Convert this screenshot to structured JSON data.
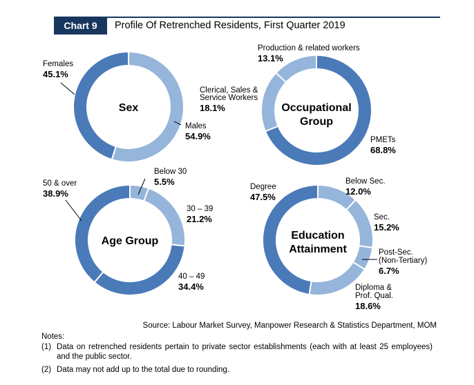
{
  "header": {
    "badge": "Chart 9",
    "title": "Profile Of Retrenched Residents, First Quarter 2019"
  },
  "colors": {
    "dark": "#4a7ab8",
    "light": "#95b5db",
    "ink": "#17375e"
  },
  "chart_data": [
    {
      "type": "pie",
      "variant": "donut",
      "title": "Sex",
      "start_angle_deg": 0,
      "slices": [
        {
          "label": "Males",
          "value": 54.9,
          "pct": "54.9%",
          "color": "#95b5db"
        },
        {
          "label": "Females",
          "value": 45.1,
          "pct": "45.1%",
          "color": "#4a7ab8"
        }
      ]
    },
    {
      "type": "pie",
      "variant": "donut",
      "title": "Occupational Group",
      "title_lines": [
        "Occupational",
        "Group"
      ],
      "start_angle_deg": 0,
      "slices": [
        {
          "label": "PMETs",
          "value": 68.8,
          "pct": "68.8%",
          "color": "#4a7ab8"
        },
        {
          "label": "Clerical, Sales & Service Workers",
          "label_lines": [
            "Clerical, Sales &",
            "Service Workers"
          ],
          "value": 18.1,
          "pct": "18.1%",
          "color": "#95b5db"
        },
        {
          "label": "Production & related workers",
          "value": 13.1,
          "pct": "13.1%",
          "color": "#95b5db"
        }
      ]
    },
    {
      "type": "pie",
      "variant": "donut",
      "title": "Age Group",
      "start_angle_deg": 0,
      "slices": [
        {
          "label": "Below 30",
          "value": 5.5,
          "pct": "5.5%",
          "color": "#95b5db"
        },
        {
          "label": "30 – 39",
          "value": 21.2,
          "pct": "21.2%",
          "color": "#95b5db"
        },
        {
          "label": "40 – 49",
          "value": 34.4,
          "pct": "34.4%",
          "color": "#4a7ab8"
        },
        {
          "label": "50 & over",
          "value": 38.9,
          "pct": "38.9%",
          "color": "#4a7ab8"
        }
      ]
    },
    {
      "type": "pie",
      "variant": "donut",
      "title": "Education Attainment",
      "title_lines": [
        "Education",
        "Attainment"
      ],
      "start_angle_deg": 0,
      "slices": [
        {
          "label": "Below Sec.",
          "value": 12.0,
          "pct": "12.0%",
          "color": "#95b5db"
        },
        {
          "label": "Sec.",
          "value": 15.2,
          "pct": "15.2%",
          "color": "#95b5db"
        },
        {
          "label": "Post-Sec. (Non-Tertiary)",
          "label_lines": [
            "Post-Sec.",
            "(Non-Tertiary)"
          ],
          "value": 6.7,
          "pct": "6.7%",
          "color": "#95b5db"
        },
        {
          "label": "Diploma & Prof. Qual.",
          "label_lines": [
            "Diploma &",
            "Prof. Qual."
          ],
          "value": 18.6,
          "pct": "18.6%",
          "color": "#95b5db"
        },
        {
          "label": "Degree",
          "value": 47.5,
          "pct": "47.5%",
          "color": "#4a7ab8"
        }
      ]
    }
  ],
  "source": "Source: Labour Market Survey, Manpower Research & Statistics Department, MOM",
  "notes": {
    "heading": "Notes:",
    "items": [
      {
        "num": "(1)",
        "text": "Data on retrenched residents pertain to private sector establishments (each with at least 25 employees) and the public sector."
      },
      {
        "num": "(2)",
        "text": "Data may not add up to the total due to rounding."
      }
    ]
  }
}
